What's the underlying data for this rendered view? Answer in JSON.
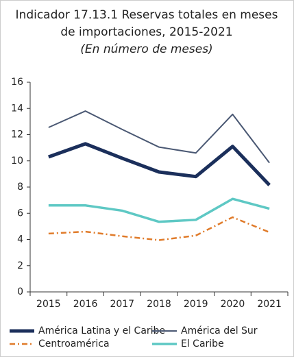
{
  "chart_data": {
    "type": "line",
    "title": [
      "Indicador 17.13.1 Reservas totales en meses",
      "de importaciones, 2015-2021"
    ],
    "subtitle": "(En número de meses)",
    "categories": [
      "2015",
      "2016",
      "2017",
      "2018",
      "2019",
      "2020",
      "2021"
    ],
    "series": [
      {
        "name": "América Latina y el Caribe",
        "color": "#1b2f5b",
        "values": [
          10.3,
          11.3,
          10.2,
          9.15,
          8.8,
          11.1,
          8.15
        ]
      },
      {
        "name": "América del Sur",
        "color": "#4a5873",
        "values": [
          12.55,
          13.8,
          12.4,
          11.05,
          10.6,
          13.55,
          9.85
        ]
      },
      {
        "name": "Centroamérica",
        "color": "#e07b2a",
        "values": [
          4.45,
          4.6,
          4.25,
          3.95,
          4.3,
          5.7,
          4.55
        ]
      },
      {
        "name": "El Caribe",
        "color": "#5ec8c4",
        "values": [
          6.6,
          6.6,
          6.2,
          5.35,
          5.5,
          7.1,
          6.35
        ]
      }
    ],
    "ylim": [
      0,
      16
    ],
    "yticks": [
      0,
      2,
      4,
      6,
      8,
      10,
      12,
      14,
      16
    ],
    "legend": "bottom"
  }
}
